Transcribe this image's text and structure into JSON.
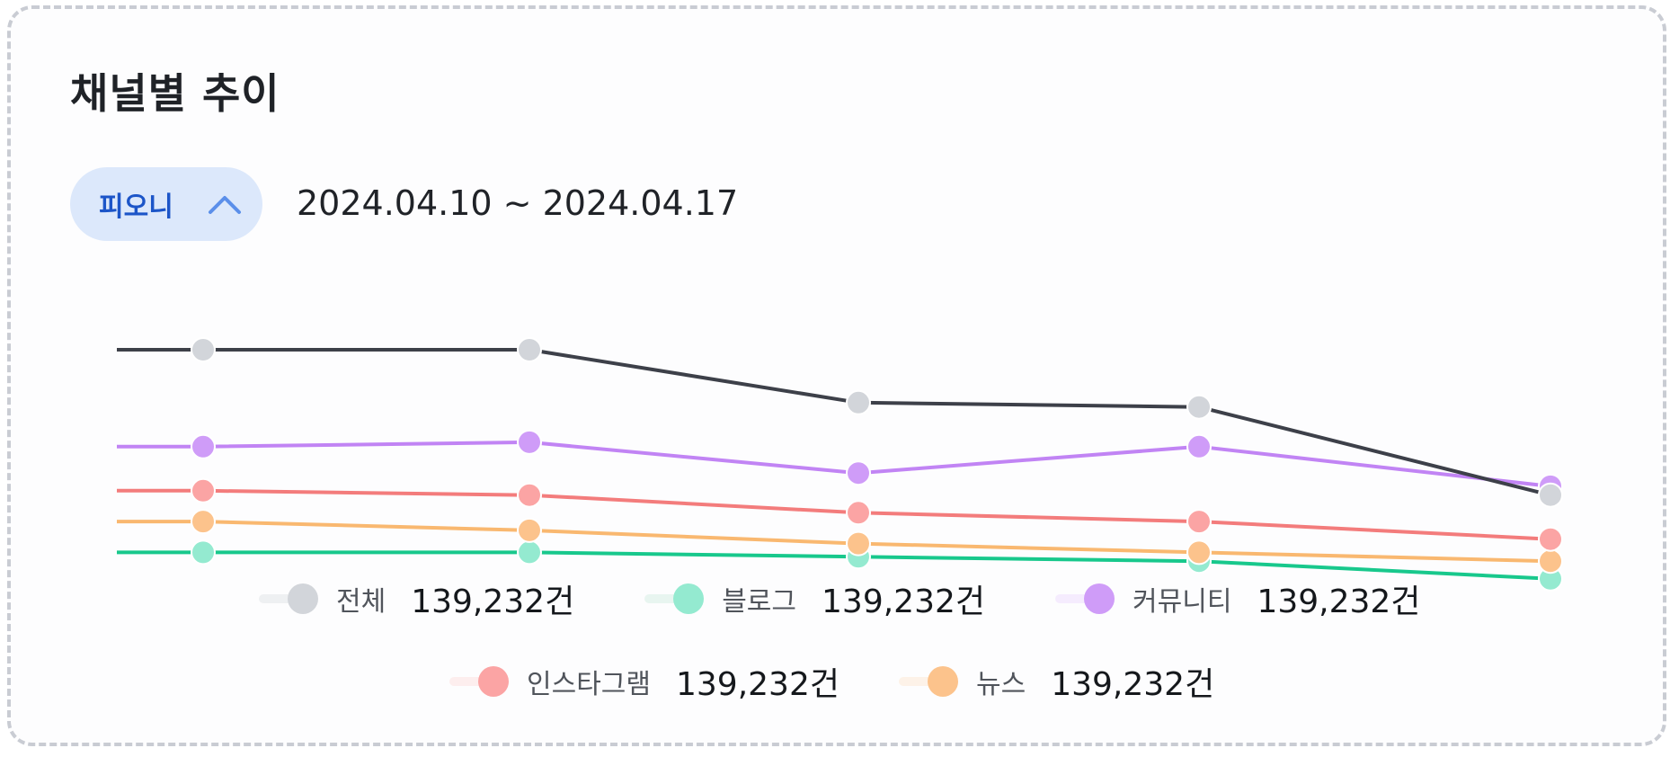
{
  "card": {
    "title": "채널별 추이"
  },
  "filter": {
    "label": "피오니",
    "icon": "chevron-up-icon"
  },
  "date_range": "2024.04.10 ~ 2024.04.17",
  "chart_data": {
    "type": "line",
    "x": [
      "1",
      "2",
      "3",
      "4",
      "5"
    ],
    "ylim": [
      0,
      100
    ],
    "grid": false,
    "legend_position": "bottom",
    "series": [
      {
        "name": "전체",
        "values": [
          90,
          90,
          78,
          77,
          57
        ],
        "color": "#3d4049",
        "marker_color": "#d2d5da"
      },
      {
        "name": "커뮤니티",
        "values": [
          68,
          69,
          62,
          68,
          59
        ],
        "color": "#c184f4",
        "marker_color": "#cf9cf8"
      },
      {
        "name": "인스타그램",
        "values": [
          58,
          57,
          53,
          51,
          47
        ],
        "color": "#f37c7c",
        "marker_color": "#fba4a4"
      },
      {
        "name": "뉴스",
        "values": [
          51,
          49,
          46,
          44,
          42
        ],
        "color": "#f9b870",
        "marker_color": "#fcc38c"
      },
      {
        "name": "블로그",
        "values": [
          44,
          44,
          43,
          42,
          38
        ],
        "color": "#18c88c",
        "marker_color": "#94ead0"
      }
    ]
  },
  "legend": [
    [
      {
        "name": "전체",
        "count": "139,232건",
        "track_color": "#eef0f2",
        "dot_color": "#d2d5da"
      },
      {
        "name": "블로그",
        "count": "139,232건",
        "track_color": "#e8f5f0",
        "dot_color": "#94ead0"
      },
      {
        "name": "커뮤니티",
        "count": "139,232건",
        "track_color": "#f5ecfe",
        "dot_color": "#cf9cf8"
      }
    ],
    [
      {
        "name": "인스타그램",
        "count": "139,232건",
        "track_color": "#fdeeee",
        "dot_color": "#fba4a4"
      },
      {
        "name": "뉴스",
        "count": "139,232건",
        "track_color": "#fdf2e8",
        "dot_color": "#fcc38c"
      }
    ]
  ]
}
